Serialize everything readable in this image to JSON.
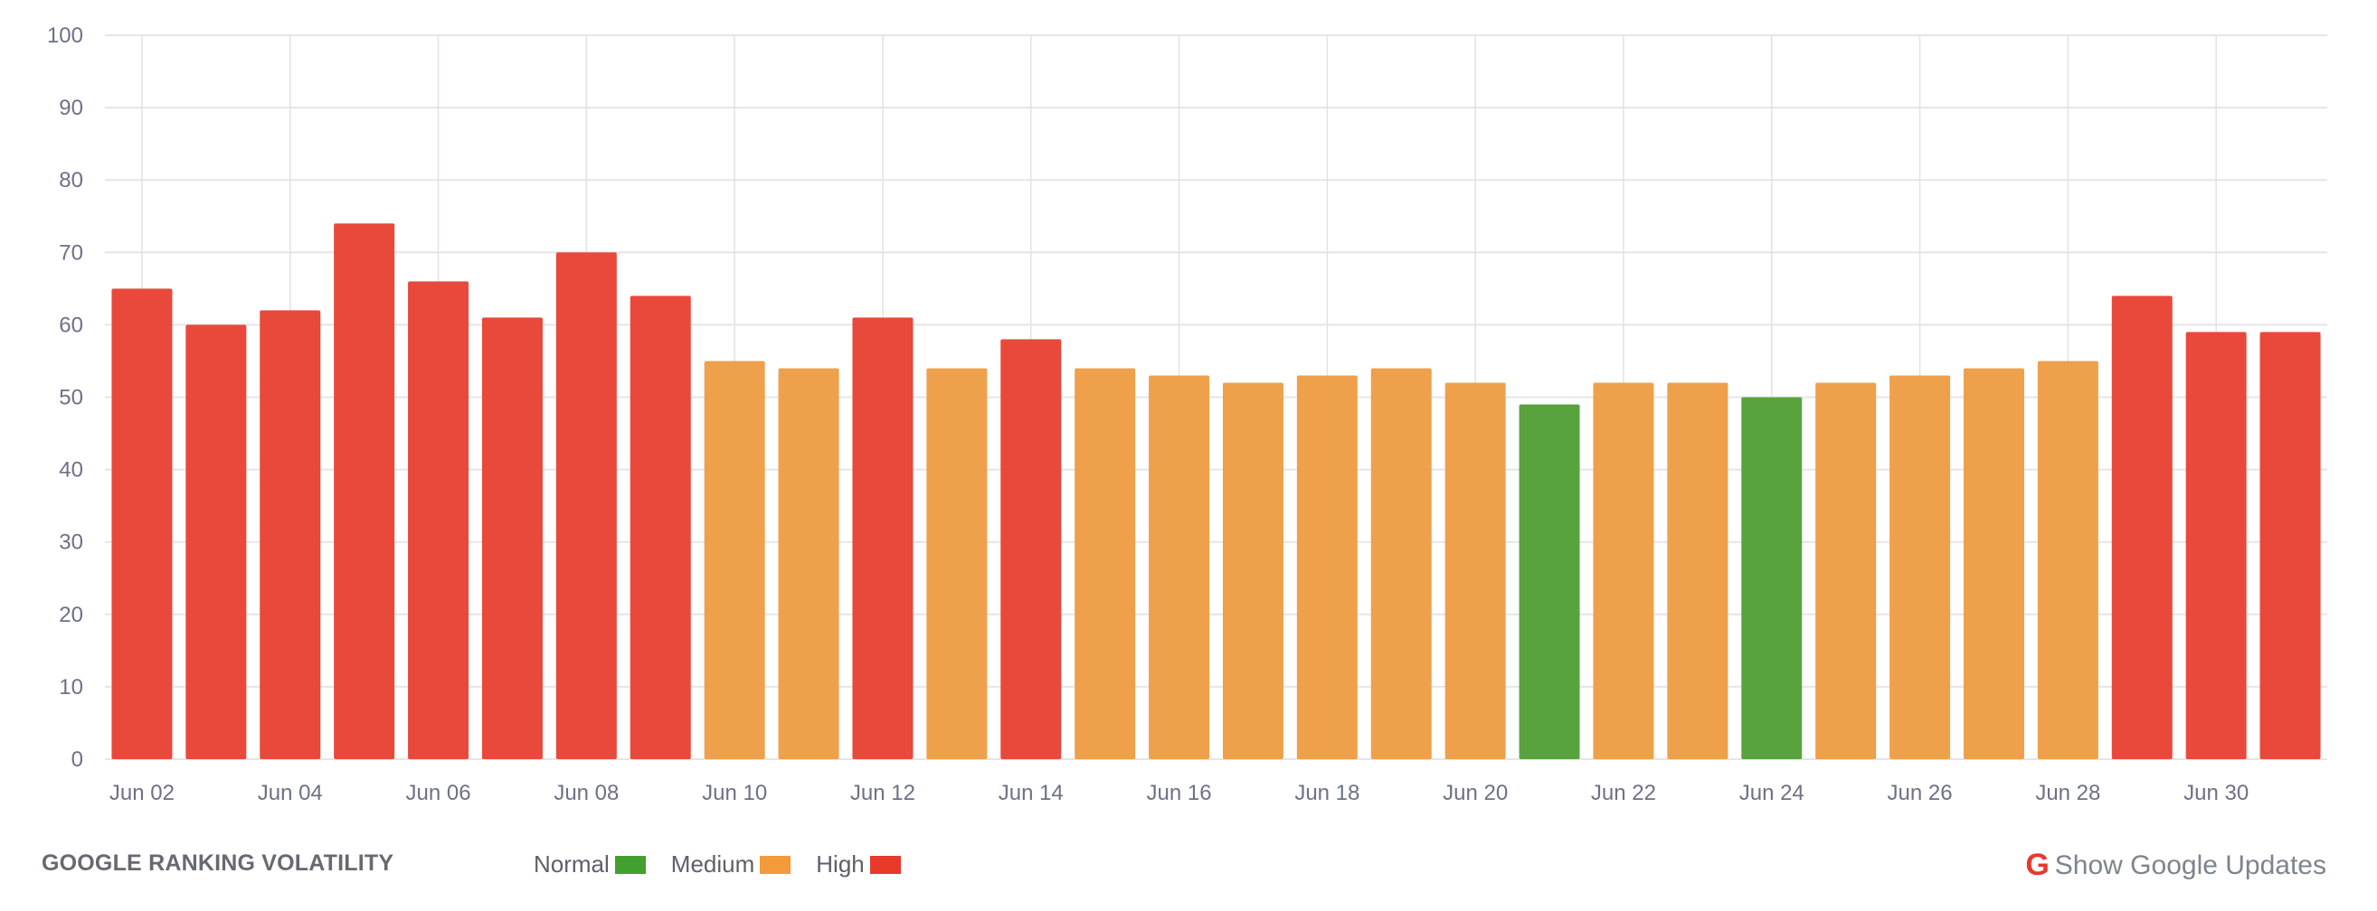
{
  "footer": {
    "title": "GOOGLE RANKING VOLATILITY",
    "legend": [
      {
        "label": "Normal",
        "color": "#43a02e"
      },
      {
        "label": "Medium",
        "color": "#f39a3a"
      },
      {
        "label": "High",
        "color": "#e9392b"
      }
    ],
    "updates_icon": "google-g-icon",
    "updates_icon_glyph": "G",
    "updates_label": "Show Google Updates"
  },
  "chart_data": {
    "type": "bar",
    "title": "GOOGLE RANKING VOLATILITY",
    "xlabel": "",
    "ylabel": "",
    "ylim": [
      0,
      100
    ],
    "yticks": [
      0,
      10,
      20,
      30,
      40,
      50,
      60,
      70,
      80,
      90,
      100
    ],
    "grid": true,
    "legend_position": "bottom",
    "categories": [
      "Jun 02",
      "Jun 03",
      "Jun 04",
      "Jun 05",
      "Jun 06",
      "Jun 07",
      "Jun 08",
      "Jun 09",
      "Jun 10",
      "Jun 11",
      "Jun 12",
      "Jun 13",
      "Jun 14",
      "Jun 15",
      "Jun 16",
      "Jun 17",
      "Jun 18",
      "Jun 19",
      "Jun 20",
      "Jun 21",
      "Jun 22",
      "Jun 23",
      "Jun 24",
      "Jun 25",
      "Jun 26",
      "Jun 27",
      "Jun 28",
      "Jun 29",
      "Jun 30",
      "Jul 01"
    ],
    "xtick_labels": [
      "Jun 02",
      "Jun 04",
      "Jun 06",
      "Jun 08",
      "Jun 10",
      "Jun 12",
      "Jun 14",
      "Jun 16",
      "Jun 18",
      "Jun 20",
      "Jun 22",
      "Jun 24",
      "Jun 26",
      "Jun 28",
      "Jun 30"
    ],
    "values": [
      65,
      60,
      62,
      74,
      66,
      61,
      70,
      64,
      55,
      54,
      61,
      54,
      58,
      54,
      53,
      52,
      53,
      54,
      52,
      49,
      52,
      52,
      50,
      52,
      53,
      54,
      55,
      64,
      59,
      59
    ],
    "levels": [
      "High",
      "High",
      "High",
      "High",
      "High",
      "High",
      "High",
      "High",
      "Medium",
      "Medium",
      "High",
      "Medium",
      "High",
      "Medium",
      "Medium",
      "Medium",
      "Medium",
      "Medium",
      "Medium",
      "Normal",
      "Medium",
      "Medium",
      "Normal",
      "Medium",
      "Medium",
      "Medium",
      "Medium",
      "High",
      "High",
      "High"
    ],
    "level_colors": {
      "Normal": "#59a33f",
      "Medium": "#efa04a",
      "High": "#e8493a"
    }
  }
}
